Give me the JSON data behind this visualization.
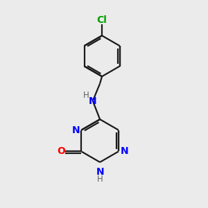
{
  "bg_color": "#ebebeb",
  "bond_color": "#1a1a1a",
  "n_color": "#0000ff",
  "o_color": "#ff0000",
  "cl_color": "#00a000",
  "h_color": "#606060",
  "figsize": [
    3.0,
    3.0
  ],
  "dpi": 100,
  "lw": 1.6,
  "fs": 10,
  "fs_small": 8.5,
  "xlim": [
    0,
    10
  ],
  "ylim": [
    0,
    10
  ]
}
